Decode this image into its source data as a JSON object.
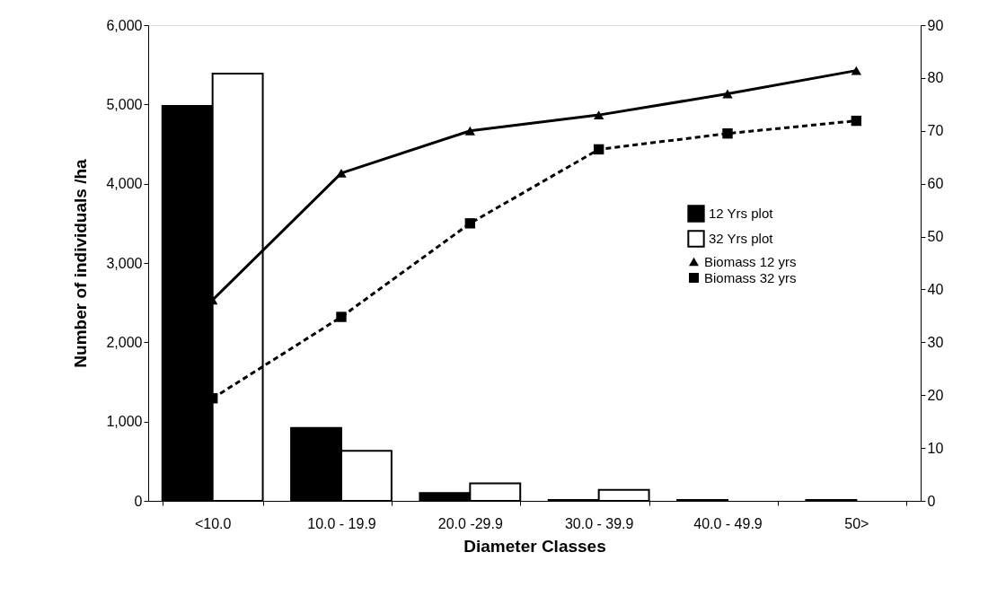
{
  "chart_data": {
    "type": "bar",
    "xlabel": "Diameter Classes",
    "ylabel": "Number of individuals /ha",
    "categories": [
      "<10.0",
      "10.0 - 19.9",
      "20.0 -29.9",
      "30.0 - 39.9",
      "40.0 - 49.9",
      "50>"
    ],
    "series": [
      {
        "name": "12 Yrs plot",
        "type": "bar",
        "color": "#000000",
        "values": [
          4980,
          920,
          100,
          10,
          10,
          10
        ]
      },
      {
        "name": "32 Yrs plot",
        "type": "bar",
        "color": "#ffffff",
        "values": [
          5390,
          630,
          220,
          140,
          null,
          null
        ]
      },
      {
        "name": "Biomass 12 yrs",
        "type": "line",
        "axis": "y2",
        "color": "#000000",
        "marker": "triangle",
        "line_style": "solid",
        "values": [
          38,
          62,
          70,
          73,
          77,
          81.4
        ]
      },
      {
        "name": "Biomass 32 yrs",
        "type": "line",
        "axis": "y2",
        "color": "#000000",
        "marker": "square",
        "line_style": "dashed",
        "values": [
          19.4,
          34.8,
          52.5,
          66.5,
          69.5,
          71.9
        ]
      }
    ],
    "ylim": [
      0,
      6000
    ],
    "yticks": [
      {
        "value": 0,
        "label": "0"
      },
      {
        "value": 1000,
        "label": "1,000"
      },
      {
        "value": 2000,
        "label": "2,000"
      },
      {
        "value": 3000,
        "label": "3,000"
      },
      {
        "value": 4000,
        "label": "4,000"
      },
      {
        "value": 5000,
        "label": "5,000"
      },
      {
        "value": 6000,
        "label": "6,000"
      }
    ],
    "y2lim": [
      0,
      90
    ],
    "y2ticks": [
      0,
      10,
      20,
      30,
      40,
      50,
      60,
      70,
      80,
      90
    ],
    "grid": false,
    "legend": "right"
  }
}
